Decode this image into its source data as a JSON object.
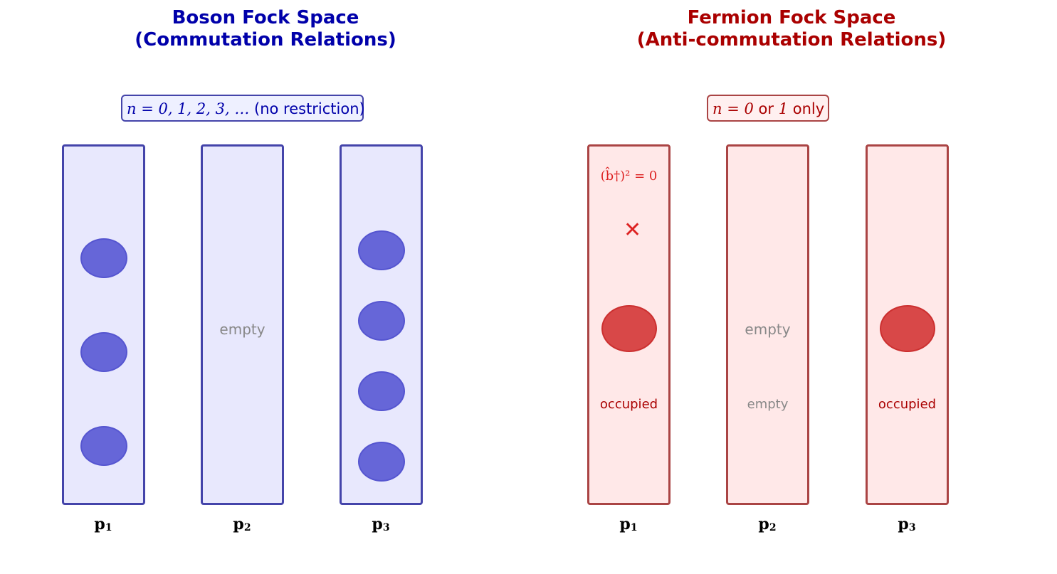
{
  "boson": {
    "title_line1": "Boson Fock Space",
    "title_line2": "(Commutation Relations)",
    "rule_math": "n = 0, 1, 2, 3, …",
    "rule_text": " (no restriction)",
    "color": "#0000aa",
    "modes": [
      {
        "label": "p",
        "sub": "1",
        "count": 3,
        "status": ""
      },
      {
        "label": "p",
        "sub": "2",
        "count": 0,
        "status": "empty"
      },
      {
        "label": "p",
        "sub": "3",
        "count": 4,
        "status": ""
      }
    ]
  },
  "fermion": {
    "title_line1": "Fermion Fock Space",
    "title_line2": "(Anti-commutation Relations)",
    "rule_math_n": "n = 0",
    "rule_or": " or ",
    "rule_math_1": "1",
    "rule_only": " only",
    "forbidden_rule": "(b̂†)² = 0",
    "forbidden_icon": "cross-icon",
    "color": "#aa0000",
    "modes": [
      {
        "label": "p",
        "sub": "1",
        "count": 1,
        "status": "occupied"
      },
      {
        "label": "p",
        "sub": "2",
        "count": 0,
        "status": "empty",
        "status2": "empty"
      },
      {
        "label": "p",
        "sub": "3",
        "count": 1,
        "status": "occupied"
      }
    ]
  }
}
